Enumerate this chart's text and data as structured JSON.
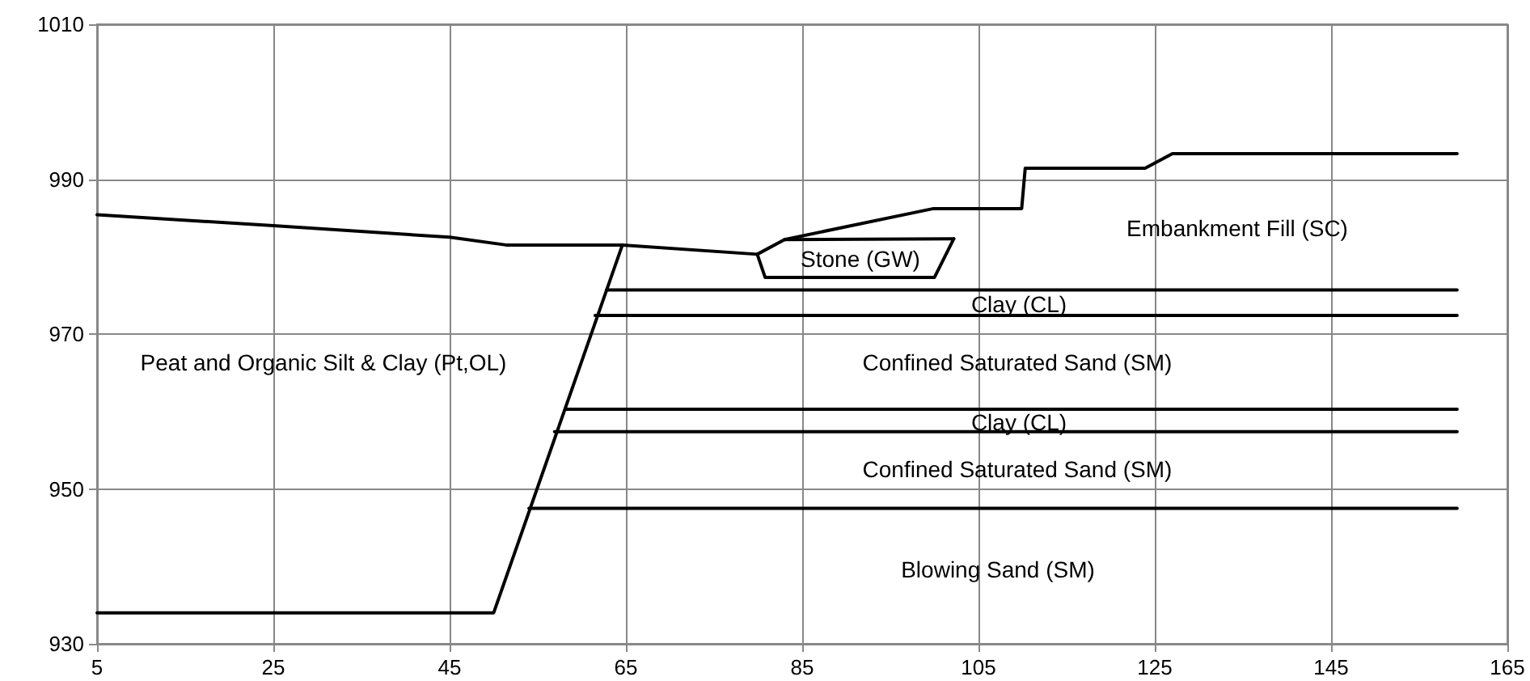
{
  "chart_data": {
    "type": "line",
    "xlim": [
      5,
      165
    ],
    "xticks": [
      5,
      25,
      45,
      65,
      85,
      105,
      125,
      145,
      165
    ],
    "ylim": [
      930,
      1010
    ],
    "yticks": [
      930,
      950,
      970,
      990,
      1010
    ],
    "grid": true,
    "marker": "none",
    "line_style": "solid",
    "series": [
      {
        "color": "#000000",
        "x": [
          5,
          25,
          45,
          51.4,
          64.6,
          79.9,
          83,
          99.9,
          109.9,
          110.3,
          123.9,
          127,
          159.3
        ],
        "values": [
          985.4,
          984.0,
          982.5,
          981.5,
          981.5,
          980.3,
          982.2,
          986.2,
          986.2,
          991.4,
          991.4,
          993.3,
          993.3
        ]
      },
      {
        "color": "#000000",
        "x": [
          83,
          102.2
        ],
        "values": [
          982.2,
          982.3
        ]
      },
      {
        "color": "#000000",
        "x": [
          79.9,
          80.8,
          100,
          102.2
        ],
        "values": [
          980.3,
          977.3,
          977.3,
          982.3
        ]
      },
      {
        "color": "#000000",
        "x": [
          5,
          50,
          64.6
        ],
        "values": [
          934,
          934,
          981.5
        ]
      },
      {
        "color": "#000000",
        "x": [
          62.8,
          159.3
        ],
        "values": [
          975.7,
          975.7
        ]
      },
      {
        "color": "#000000",
        "x": [
          61.5,
          159.3
        ],
        "values": [
          972.4,
          972.4
        ]
      },
      {
        "color": "#000000",
        "x": [
          58.2,
          159.3
        ],
        "values": [
          960.3,
          960.3
        ]
      },
      {
        "color": "#000000",
        "x": [
          56.9,
          159.3
        ],
        "values": [
          957.4,
          957.4
        ]
      },
      {
        "color": "#000000",
        "x": [
          54,
          159.3
        ],
        "values": [
          947.5,
          947.5
        ]
      }
    ],
    "annotations": [
      "Embankment Fill (SC)",
      "Stone (GW)",
      "Clay (CL)",
      "Peat and Organic Silt & Clay (Pt,OL)",
      "Confined Saturated Sand (SM)",
      "Clay (CL)",
      "Confined Saturated Sand (SM)",
      "Blowing Sand (SM)"
    ]
  }
}
